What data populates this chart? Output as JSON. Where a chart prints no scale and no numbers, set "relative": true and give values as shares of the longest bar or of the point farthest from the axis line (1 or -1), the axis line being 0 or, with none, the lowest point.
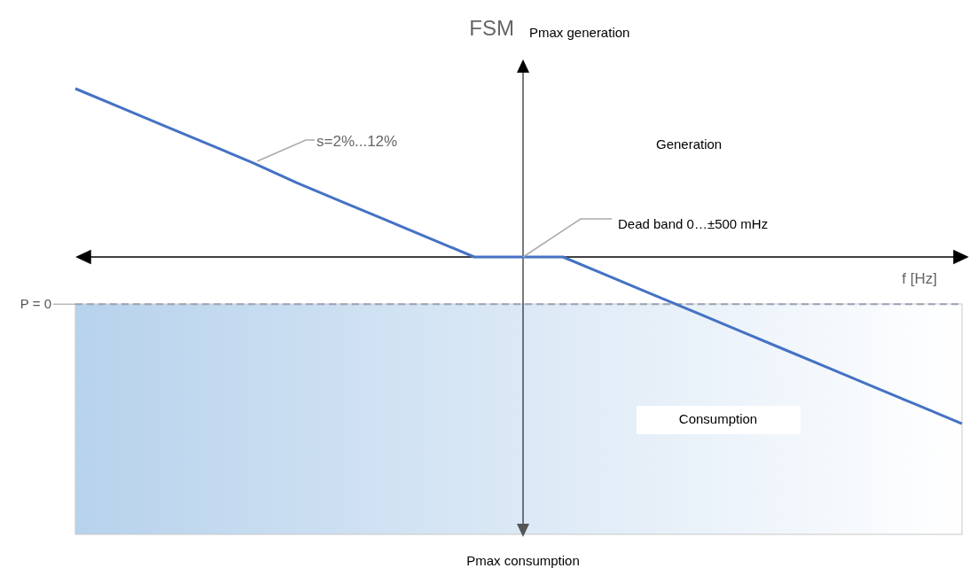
{
  "chart_data": {
    "type": "line",
    "title": "FSM",
    "relative": true,
    "categories": [
      null,
      null,
      null,
      null,
      null,
      null,
      null,
      null,
      null,
      null,
      null,
      null,
      null,
      null,
      null,
      null,
      null,
      null,
      null,
      null,
      null
    ],
    "series": [
      {
        "color": "#4472c4",
        "values": [
          1,
          0.89,
          0.78,
          0.67,
          0.56,
          0.44,
          0.33,
          0.22,
          0.11,
          0,
          0,
          0,
          -0.11,
          -0.22,
          -0.33,
          -0.44,
          -0.55,
          -0.66,
          -0.77,
          -0.88,
          -0.99
        ]
      }
    ],
    "ref_lines": [
      {
        "axis": "y",
        "value": -0.28,
        "label": "P = 0",
        "color": "#9aa3b5",
        "line_style": "dashed"
      }
    ],
    "annotations": [
      "Pmax generation",
      "Generation",
      "Dead band 0…±500 mHz",
      "s=2%...12%",
      "f [Hz]",
      "Consumption",
      "Pmax consumption"
    ],
    "marker": "none",
    "line_style": "solid",
    "grid": false
  }
}
